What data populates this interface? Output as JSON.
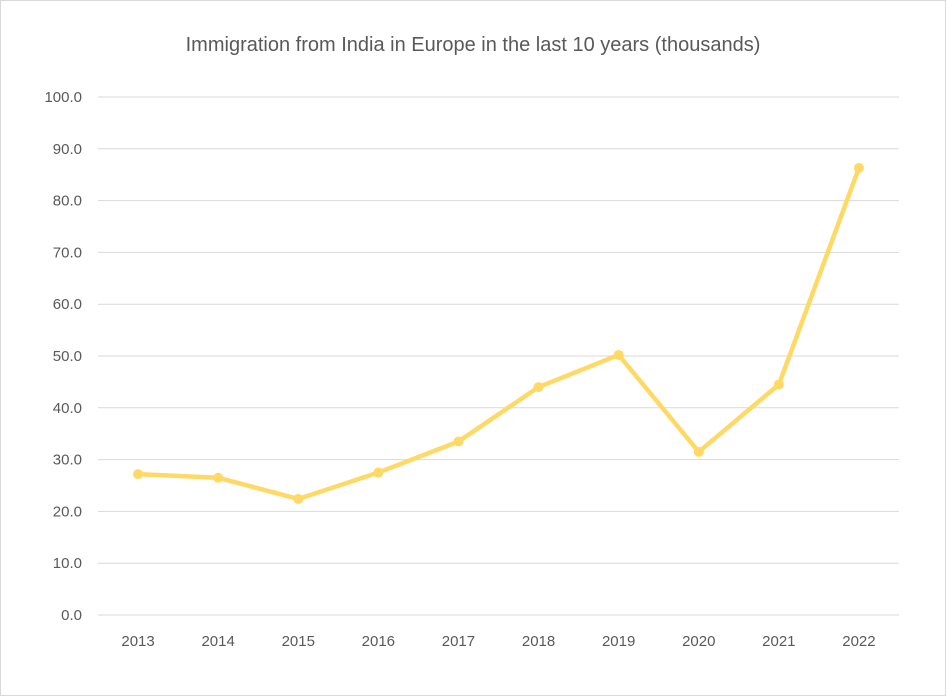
{
  "chart_data": {
    "type": "line",
    "title": "Immigration from India in Europe in the last 10 years (thousands)",
    "xlabel": "",
    "ylabel": "",
    "categories": [
      "2013",
      "2014",
      "2015",
      "2016",
      "2017",
      "2018",
      "2019",
      "2020",
      "2021",
      "2022"
    ],
    "series": [
      {
        "values": [
          27.2,
          26.5,
          22.4,
          27.5,
          33.5,
          44.0,
          50.2,
          31.5,
          44.5,
          86.3
        ]
      }
    ],
    "ylim": [
      0,
      100
    ],
    "yticks": [
      "0.0",
      "10.0",
      "20.0",
      "30.0",
      "40.0",
      "50.0",
      "60.0",
      "70.0",
      "80.0",
      "90.0",
      "100.0"
    ],
    "grid": true,
    "legend": "none",
    "colors": {
      "line": "#FFD966",
      "grid": "#d9d9d9",
      "text": "#595959"
    }
  }
}
